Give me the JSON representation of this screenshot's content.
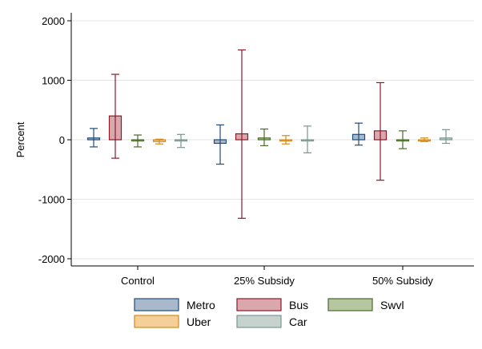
{
  "chart_data": {
    "type": "bar",
    "title": "",
    "xlabel": "",
    "ylabel": "Percent",
    "ylim": [
      -2150,
      2150
    ],
    "yticks": [
      -2000,
      -1000,
      0,
      1000,
      2000
    ],
    "ytick_labels": [
      "-2000",
      "-1000",
      "0",
      "1000",
      "2000"
    ],
    "grid": true,
    "legend_position": "bottom",
    "categories": [
      "Control",
      "25% Subsidy",
      "50% Subsidy"
    ],
    "series": [
      {
        "name": "Metro",
        "fill": "#aab8cc",
        "stroke": "#1f4e79",
        "values": [
          30,
          -60,
          90
        ],
        "ci_low": [
          -120,
          -410,
          -90
        ],
        "ci_high": [
          190,
          250,
          280
        ]
      },
      {
        "name": "Bus",
        "fill": "#d8a8ad",
        "stroke": "#8b1a2b",
        "values": [
          400,
          100,
          150
        ],
        "ci_low": [
          -310,
          -1320,
          -680
        ],
        "ci_high": [
          1100,
          1510,
          960
        ]
      },
      {
        "name": "Swvl",
        "fill": "#b5c6a0",
        "stroke": "#4a6a2a",
        "values": [
          -20,
          30,
          0
        ],
        "ci_low": [
          -120,
          -100,
          -150
        ],
        "ci_high": [
          80,
          180,
          150
        ]
      },
      {
        "name": "Uber",
        "fill": "#f5cf98",
        "stroke": "#d6891a",
        "values": [
          -30,
          0,
          0
        ],
        "ci_low": [
          -70,
          -70,
          -30
        ],
        "ci_high": [
          10,
          70,
          30
        ]
      },
      {
        "name": "Car",
        "fill": "#c5d2ce",
        "stroke": "#7a9690",
        "values": [
          -10,
          0,
          30
        ],
        "ci_low": [
          -130,
          -220,
          -60
        ],
        "ci_high": [
          90,
          230,
          170
        ]
      }
    ]
  }
}
